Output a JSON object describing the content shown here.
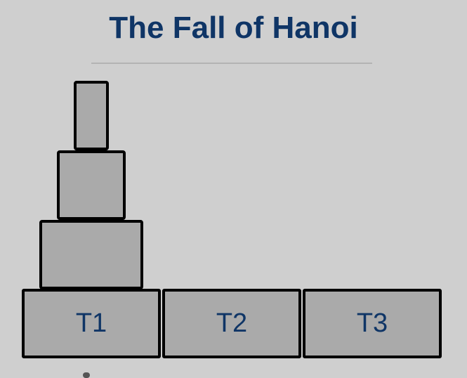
{
  "title": "The Fall of Hanoi",
  "towers": [
    {
      "label": "T1",
      "disks": [
        3,
        2,
        1
      ]
    },
    {
      "label": "T2",
      "disks": []
    },
    {
      "label": "T3",
      "disks": []
    }
  ],
  "colors": {
    "background": "#cfcfcf",
    "title": "#0f3566",
    "piece_fill": "#aaaaaa",
    "piece_border": "#000000",
    "divider": "#b3b3b3"
  }
}
